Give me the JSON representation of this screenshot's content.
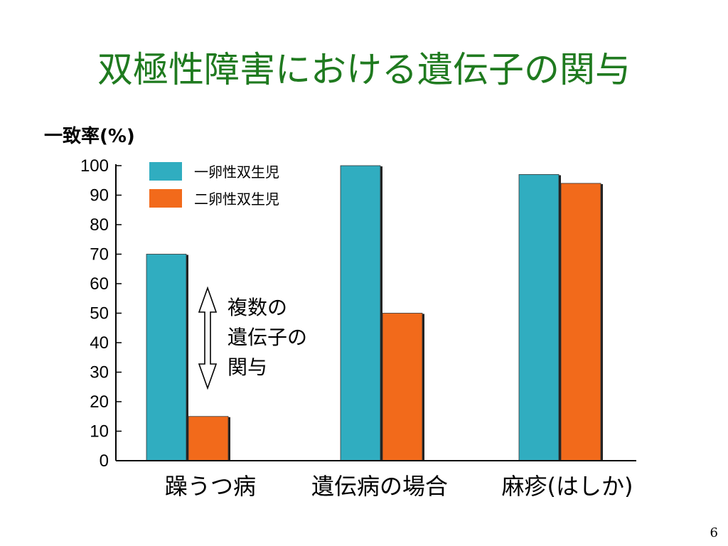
{
  "slide": {
    "title": "双極性障害における遺伝子の関与",
    "page_number": "6"
  },
  "colors": {
    "title": "#1f7a1f",
    "series_1": "#30adc0",
    "series_2": "#f26a1b",
    "axis": "#000000"
  },
  "annotation": {
    "lines": [
      "複数の",
      "遺伝子の",
      "関与"
    ],
    "arrow": "double-headed-vertical-arrow"
  },
  "chart_data": {
    "type": "bar",
    "ylabel": "一致率(%)",
    "xlabel": "",
    "ylim": [
      0,
      100
    ],
    "yticks": [
      0,
      10,
      20,
      30,
      40,
      50,
      60,
      70,
      80,
      90,
      100
    ],
    "categories": [
      "躁うつ病",
      "遺伝病の場合",
      "麻疹(はしか)"
    ],
    "series": [
      {
        "name": "一卵性双生児",
        "values": [
          70,
          100,
          97
        ]
      },
      {
        "name": "二卵性双生児",
        "values": [
          15,
          50,
          94
        ]
      }
    ],
    "legend_position": "top-left",
    "grid": false
  }
}
